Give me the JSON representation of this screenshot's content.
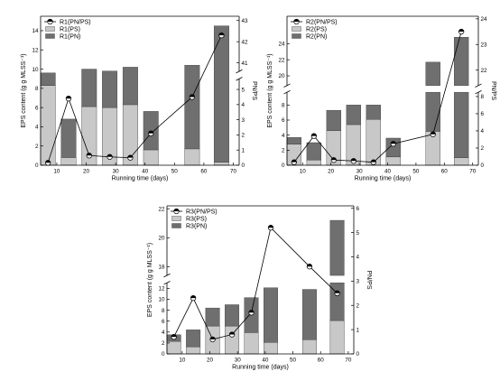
{
  "chart_data": [
    {
      "type": "bar",
      "stacked": true,
      "x": [
        7,
        14,
        21,
        28,
        35,
        42,
        56,
        66
      ],
      "xlim": [
        4.5,
        72
      ],
      "xticks": [
        10,
        20,
        30,
        40,
        50,
        60,
        70
      ],
      "xlabel": "Running time (days)",
      "ylabel": "EPS content (g g MLSS⁻¹)",
      "y2label": "PN/PS",
      "y_left": {
        "segments": [
          {
            "range": [
              0,
              15.5
            ],
            "ticks": [
              0,
              2,
              4,
              6,
              8,
              10,
              12,
              14
            ]
          }
        ]
      },
      "y_right": {
        "segments": [
          {
            "range": [
              0,
              5.7
            ],
            "ticks": [
              0,
              1,
              2,
              3,
              4,
              5
            ]
          },
          {
            "range": [
              40.6,
              43.2
            ],
            "ticks": [
              41,
              42,
              43
            ]
          }
        ]
      },
      "series": [
        {
          "name": "R1(PS)",
          "color": "#c8c8c8",
          "values": [
            8.3,
            0.8,
            6.1,
            6.0,
            6.3,
            1.6,
            1.7,
            0.3
          ]
        },
        {
          "name": "R1(PN)",
          "color": "#6f6f6f",
          "values": [
            1.3,
            4.0,
            3.9,
            3.8,
            3.9,
            4.0,
            8.7,
            14.2
          ]
        }
      ],
      "line": {
        "name": "R1(PN/PS)",
        "color": "#000000",
        "values": [
          0.16,
          4.4,
          0.64,
          0.55,
          0.5,
          2.1,
          4.5,
          42.3
        ]
      },
      "legend": "top-left",
      "grid": false
    },
    {
      "type": "bar",
      "stacked": true,
      "x": [
        7,
        14,
        21,
        28,
        35,
        42,
        56,
        66
      ],
      "xlim": [
        4.5,
        72
      ],
      "xticks": [
        10,
        20,
        30,
        40,
        50,
        60,
        70
      ],
      "xlabel": "Running time (days)",
      "ylabel": "EPS content (g g MLSS⁻¹)",
      "y2label": "PN/PS",
      "y_left": {
        "segments": [
          {
            "range": [
              0,
              9.7
            ],
            "ticks": [
              0,
              2,
              4,
              6,
              8
            ]
          },
          {
            "range": [
              18.8,
              27.4
            ],
            "ticks": [
              20,
              22,
              24
            ]
          }
        ]
      },
      "y_right": {
        "segments": [
          {
            "range": [
              0,
              8.5
            ],
            "ticks": [
              0,
              2,
              4,
              6,
              8
            ]
          },
          {
            "range": [
              21.4,
              24.1
            ],
            "ticks": [
              22,
              23,
              24
            ]
          }
        ]
      },
      "series": [
        {
          "name": "R2(PS)",
          "color": "#c8c8c8",
          "values": [
            2.8,
            0.7,
            4.6,
            5.4,
            6.1,
            1.1,
            4.5,
            1.0
          ]
        },
        {
          "name": "R2(PN)",
          "color": "#6f6f6f",
          "values": [
            0.9,
            2.3,
            2.7,
            2.6,
            1.9,
            2.5,
            17.2,
            23.8
          ]
        }
      ],
      "line": {
        "name": "R2(PN/PS)",
        "color": "#000000",
        "values": [
          0.35,
          3.4,
          0.6,
          0.5,
          0.35,
          2.5,
          3.6,
          23.5
        ]
      },
      "legend": "top-left",
      "grid": false
    },
    {
      "type": "bar",
      "stacked": true,
      "x": [
        7,
        14,
        21,
        28,
        35,
        42,
        56,
        66
      ],
      "xlim": [
        4.5,
        72
      ],
      "xticks": [
        10,
        20,
        30,
        40,
        50,
        60,
        70
      ],
      "xlabel": "Running time (days)",
      "ylabel": "EPS content (g g MLSS⁻¹)",
      "y2label": "PN/PS",
      "y_left": {
        "segments": [
          {
            "range": [
              0,
              13
            ],
            "ticks": [
              0,
              2,
              4,
              6,
              8,
              10,
              12
            ]
          },
          {
            "range": [
              17.4,
              22.2
            ],
            "ticks": [
              18,
              20,
              22
            ]
          }
        ]
      },
      "y_right": {
        "segments": [
          {
            "range": [
              0,
              6.1
            ],
            "ticks": [
              0,
              1,
              2,
              3,
              4,
              5,
              6
            ]
          }
        ]
      },
      "series": [
        {
          "name": "R3(PS)",
          "color": "#c8c8c8",
          "values": [
            2.3,
            1.3,
            5.1,
            5.1,
            3.9,
            2.1,
            2.6,
            6.1
          ]
        },
        {
          "name": "R3(PN)",
          "color": "#6f6f6f",
          "values": [
            1.2,
            3.1,
            3.3,
            3.9,
            6.4,
            10.0,
            9.2,
            15.1
          ]
        }
      ],
      "line": {
        "name": "R3(PN/PS)",
        "color": "#000000",
        "values": [
          0.7,
          2.3,
          0.6,
          0.8,
          1.7,
          5.2,
          3.6,
          2.5
        ]
      },
      "legend": "top-left",
      "grid": false
    }
  ]
}
